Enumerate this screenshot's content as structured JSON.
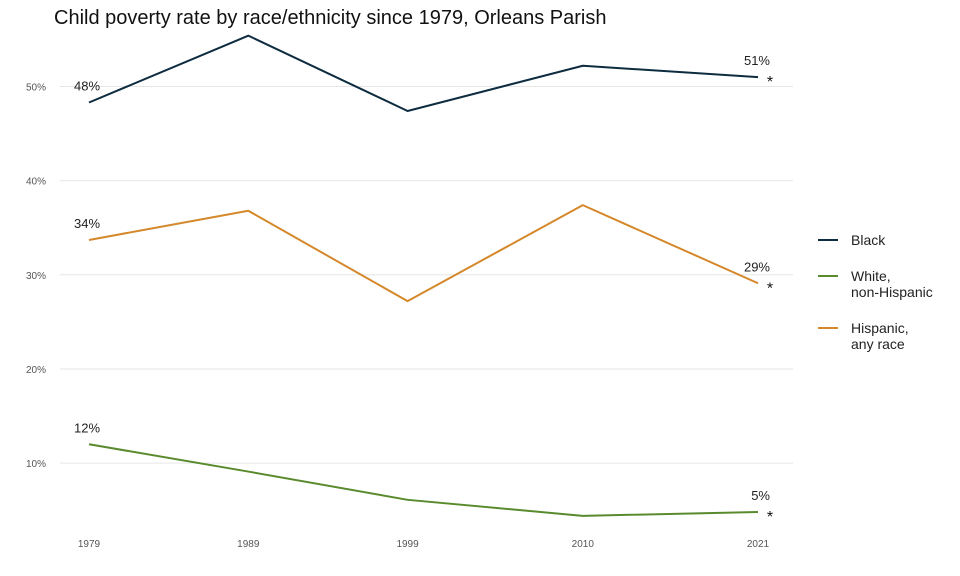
{
  "chart_data": {
    "type": "line",
    "title": "Child poverty rate by race/ethnicity since 1979, Orleans Parish",
    "xlabel": "",
    "ylabel": "",
    "x": [
      1979,
      1989,
      1999,
      2010,
      2021
    ],
    "x_tick_labels": [
      "1979",
      "1989",
      "1999",
      "2010",
      "2021"
    ],
    "ylim": [
      3,
      56
    ],
    "y_ticks": [
      10,
      20,
      30,
      40,
      50
    ],
    "y_tick_labels": [
      "10%",
      "20%",
      "30%",
      "40%",
      "50%"
    ],
    "grid": "horizontal",
    "legend_position": "right",
    "series": [
      {
        "name": "Black",
        "legend_lines": [
          "Black"
        ],
        "color": "#0d2c3f",
        "values": [
          48.3,
          55.4,
          47.4,
          52.2,
          51.0
        ],
        "start_label": "48%",
        "end_label": "51%"
      },
      {
        "name": "White, non-Hispanic",
        "legend_lines": [
          "White,",
          "non-Hispanic"
        ],
        "color": "#5a8a2e",
        "values": [
          12.0,
          9.1,
          6.1,
          4.4,
          4.8
        ],
        "start_label": "12%",
        "end_label": "5%"
      },
      {
        "name": "Hispanic, any race",
        "legend_lines": [
          "Hispanic,",
          "any race"
        ],
        "color": "#d4882a",
        "values": [
          33.7,
          36.8,
          27.2,
          37.4,
          29.1
        ],
        "start_label": "34%",
        "end_label": "29%"
      }
    ],
    "end_marker": "*"
  }
}
